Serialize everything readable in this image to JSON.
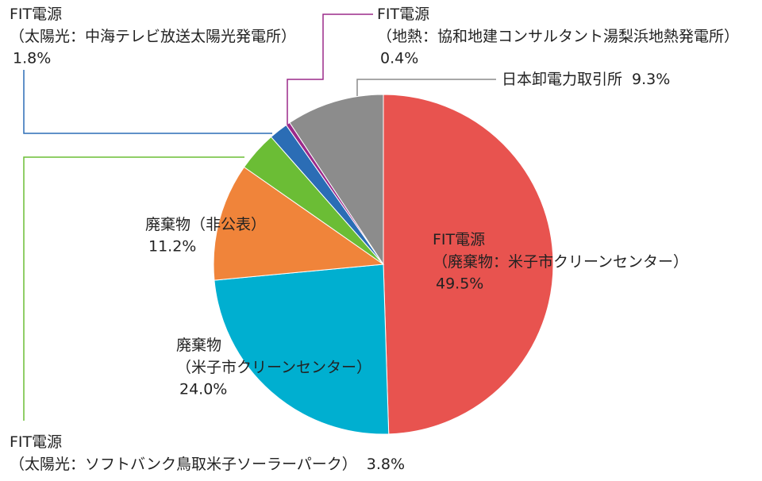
{
  "chart_data": {
    "type": "pie",
    "categories": [
      [
        "FIT電源",
        "（廃棄物：米子市クリーンセンター）"
      ],
      [
        "廃棄物",
        "（米子市クリーンセンター）"
      ],
      [
        "廃棄物（非公表）"
      ],
      [
        "FIT電源",
        "（太陽光：ソフトバンク鳥取米子ソーラーパーク）"
      ],
      [
        "FIT電源",
        "（太陽光：中海テレビ放送太陽光発電所）"
      ],
      [
        "FIT電源",
        "（地熱：協和地建コンサルタント湯梨浜地熱発電所）"
      ],
      [
        "日本卸電力取引所"
      ]
    ],
    "values": [
      49.5,
      24.0,
      11.2,
      3.8,
      1.8,
      0.4,
      9.3
    ],
    "value_labels": [
      "49.5%",
      "24.0%",
      "11.2%",
      "3.8%",
      "1.8%",
      "0.4%",
      "9.3%"
    ],
    "colors": [
      "#e8534f",
      "#00afd0",
      "#f0843a",
      "#6bbd35",
      "#2b6db5",
      "#9b2a8a",
      "#8c8c8c"
    ]
  }
}
